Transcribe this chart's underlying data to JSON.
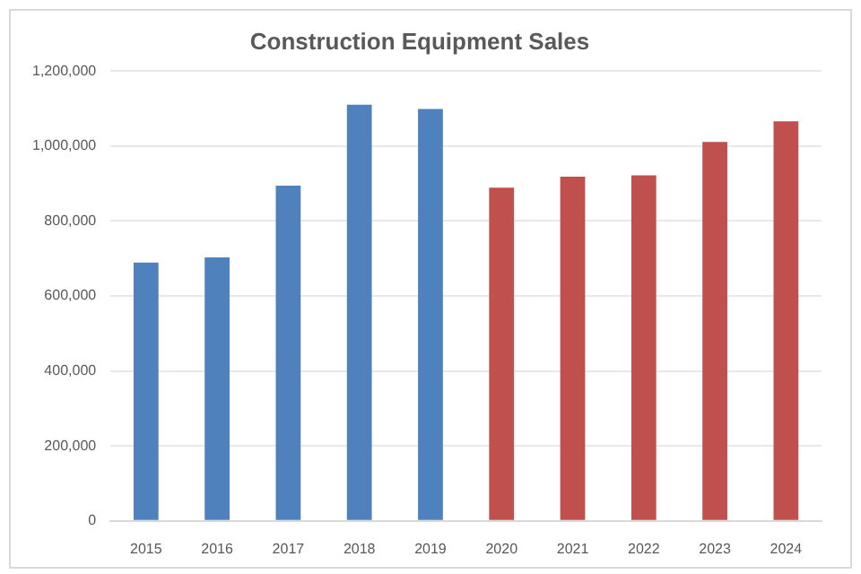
{
  "chart_data": {
    "type": "bar",
    "title": "Construction Equipment Sales",
    "categories": [
      "2015",
      "2016",
      "2017",
      "2018",
      "2019",
      "2020",
      "2021",
      "2022",
      "2023",
      "2024"
    ],
    "values": [
      689000,
      703000,
      894000,
      1110000,
      1099000,
      889000,
      918000,
      922000,
      1011000,
      1066000
    ],
    "colors": [
      "#4f81bd",
      "#4f81bd",
      "#4f81bd",
      "#4f81bd",
      "#4f81bd",
      "#c0504d",
      "#c0504d",
      "#c0504d",
      "#c0504d",
      "#c0504d"
    ],
    "ylim": [
      0,
      1200000
    ],
    "yticks": [
      0,
      {
        "value": 200000,
        "label": "200,000"
      },
      {
        "value": 400000,
        "label": "400,000"
      },
      {
        "value": 600000,
        "label": "600,000"
      },
      {
        "value": 800000,
        "label": "800,000"
      },
      {
        "value": 1000000,
        "label": "1,000,000"
      },
      {
        "value": 1200000,
        "label": "1,200,000"
      }
    ],
    "grid": "y",
    "legend": false
  }
}
